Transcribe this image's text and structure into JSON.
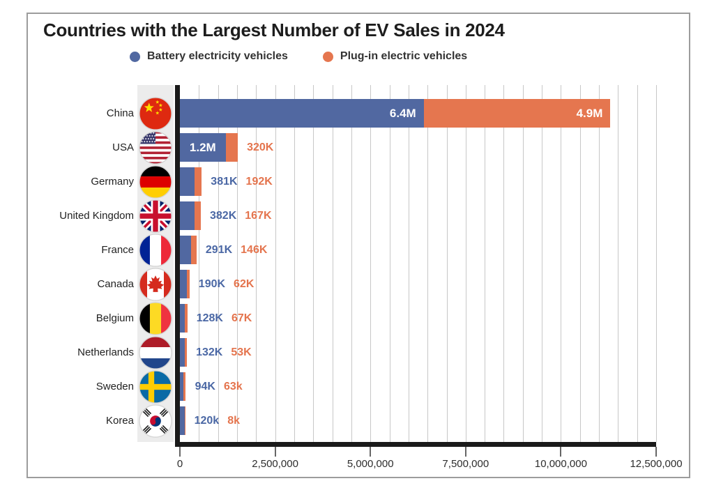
{
  "chart_data": {
    "type": "bar",
    "variant": "horizontal-stacked",
    "title": "Countries with the Largest Number of EV Sales in 2024",
    "legend_position": "top",
    "categories": [
      "China",
      "USA",
      "Germany",
      "United Kingdom",
      "France",
      "Canada",
      "Belgium",
      "Netherlands",
      "Sweden",
      "Korea"
    ],
    "flags": [
      "china",
      "usa",
      "germany",
      "uk",
      "france",
      "canada",
      "belgium",
      "netherlands",
      "sweden",
      "korea"
    ],
    "series": [
      {
        "name": "Battery electricity vehicles",
        "color": "#5168a1",
        "values": [
          6400000,
          1200000,
          381000,
          382000,
          291000,
          190000,
          128000,
          132000,
          94000,
          120000
        ],
        "labels": [
          "6.4M",
          "1.2M",
          "381K",
          "382K",
          "291K",
          "190K",
          "128K",
          "132K",
          "94K",
          "120k"
        ]
      },
      {
        "name": "Plug-in electric vehicles",
        "color": "#e5764f",
        "values": [
          4900000,
          320000,
          192000,
          167000,
          146000,
          62000,
          67000,
          53000,
          63000,
          8000
        ],
        "labels": [
          "4.9M",
          "320K",
          "192K",
          "167K",
          "146K",
          "62K",
          "67K",
          "53K",
          "63k",
          "8k"
        ]
      }
    ],
    "label_modes": [
      "both_inside",
      "bev_inside_phev_outside",
      "both_outside",
      "both_outside",
      "both_outside",
      "both_outside",
      "both_outside",
      "both_outside",
      "both_outside",
      "both_outside"
    ],
    "xlim": [
      0,
      12500000
    ],
    "x_ticks": [
      "0",
      "2,500,000",
      "5,000,000",
      "7,500,000",
      "10,000,000",
      "12,500,000"
    ],
    "x_tick_values": [
      0,
      2500000,
      5000000,
      7500000,
      10000000,
      12500000
    ],
    "gridline_interval": 500000,
    "grid": true,
    "colors": {
      "bev_bar": "#5168a1",
      "phev_bar": "#e5764f",
      "bev_text": "#4a67a4",
      "phev_text": "#e4744d",
      "gridline": "#c7c7c7",
      "axis": "#1a1a1a",
      "flag_strip": "#ececec",
      "frame_border": "#9c9c9c"
    }
  }
}
